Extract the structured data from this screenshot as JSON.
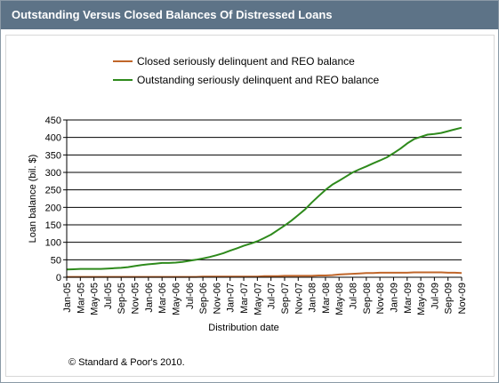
{
  "header": {
    "title": "Outstanding Versus Closed Balances Of Distressed Loans"
  },
  "footer": {
    "source": "© Standard & Poor's 2010."
  },
  "colors": {
    "title_bar": "#5d7387",
    "closed": "#c0662a",
    "outstanding": "#2e8a1c",
    "grid": "#000000"
  },
  "chart_data": {
    "type": "line",
    "title": "",
    "xlabel": "Distribution date",
    "ylabel": "Loan balance (bil. $)",
    "ylim": [
      0,
      450
    ],
    "yticks": [
      0,
      50,
      100,
      150,
      200,
      250,
      300,
      350,
      400,
      450
    ],
    "grid": true,
    "legend_position": "top",
    "categories": [
      "Jan-05",
      "Feb-05",
      "Mar-05",
      "Apr-05",
      "May-05",
      "Jun-05",
      "Jul-05",
      "Aug-05",
      "Sep-05",
      "Oct-05",
      "Nov-05",
      "Dec-05",
      "Jan-06",
      "Feb-06",
      "Mar-06",
      "Apr-06",
      "May-06",
      "Jun-06",
      "Jul-06",
      "Aug-06",
      "Sep-06",
      "Oct-06",
      "Nov-06",
      "Dec-06",
      "Jan-07",
      "Feb-07",
      "Mar-07",
      "Apr-07",
      "May-07",
      "Jun-07",
      "Jul-07",
      "Aug-07",
      "Sep-07",
      "Oct-07",
      "Nov-07",
      "Dec-07",
      "Jan-08",
      "Feb-08",
      "Mar-08",
      "Apr-08",
      "May-08",
      "Jun-08",
      "Jul-08",
      "Aug-08",
      "Sep-08",
      "Oct-08",
      "Nov-08",
      "Dec-08",
      "Jan-09",
      "Feb-09",
      "Mar-09",
      "Apr-09",
      "May-09",
      "Jun-09",
      "Jul-09",
      "Aug-09",
      "Sep-09",
      "Oct-09",
      "Nov-09"
    ],
    "tick_labels": [
      "Jan-05",
      "Mar-05",
      "May-05",
      "Jul-05",
      "Sep-05",
      "Nov-05",
      "Jan-06",
      "Mar-06",
      "May-06",
      "Jul-06",
      "Sep-06",
      "Nov-06",
      "Jan-07",
      "Mar-07",
      "May-07",
      "Jul-07",
      "Sep-07",
      "Nov-07",
      "Jan-08",
      "Mar-08",
      "May-08",
      "Jul-08",
      "Sep-08",
      "Nov-08",
      "Jan-09",
      "Mar-09",
      "May-09",
      "Jul-09",
      "Sep-09",
      "Nov-09"
    ],
    "series": [
      {
        "name": "Closed seriously delinquent and REO balance",
        "color": "#c0662a",
        "values": [
          1,
          1,
          1,
          1,
          1,
          1,
          1,
          1,
          1,
          1,
          1,
          1,
          1,
          1,
          1,
          1,
          1,
          1,
          1,
          1,
          2,
          2,
          2,
          2,
          2,
          2,
          2,
          2,
          2,
          3,
          3,
          3,
          4,
          4,
          4,
          4,
          4,
          5,
          5,
          6,
          8,
          9,
          10,
          11,
          12,
          12,
          13,
          13,
          13,
          13,
          13,
          14,
          14,
          14,
          14,
          14,
          13,
          13,
          12
        ]
      },
      {
        "name": "Outstanding seriously delinquent and REO balance",
        "color": "#2e8a1c",
        "values": [
          22,
          23,
          24,
          24,
          24,
          24,
          25,
          26,
          27,
          29,
          32,
          35,
          37,
          39,
          41,
          41,
          42,
          44,
          47,
          50,
          54,
          58,
          63,
          69,
          76,
          83,
          90,
          96,
          103,
          112,
          122,
          135,
          148,
          162,
          178,
          194,
          214,
          232,
          250,
          265,
          276,
          288,
          300,
          309,
          317,
          326,
          334,
          343,
          355,
          368,
          383,
          395,
          402,
          408,
          410,
          413,
          418,
          423,
          428
        ]
      }
    ]
  }
}
